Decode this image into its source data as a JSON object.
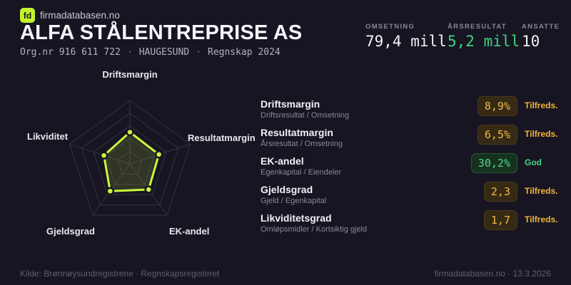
{
  "brand": {
    "logo_text": "fd",
    "site_name": "firmadatabasen.no",
    "accent_color": "#c3f22e"
  },
  "header": {
    "company_name": "ALFA STÅLENTREPRISE AS",
    "org_number": "Org.nr 916 611 722",
    "separator": "·",
    "location": "HAUGESUND",
    "report_period": "Regnskap 2024"
  },
  "topstats": {
    "items": [
      {
        "label": "OMSETNING",
        "value": "79,4 mill",
        "color": "#f4f3f7"
      },
      {
        "label": "ÅRSRESULTAT",
        "value": "5,2 mill",
        "color": "#40d47e"
      },
      {
        "label": "ANSATTE",
        "value": "10",
        "color": "#f4f3f7"
      }
    ]
  },
  "chart_data": {
    "type": "radar",
    "axes": [
      "Driftsmargin",
      "Resultatmargin",
      "EK-andel",
      "Gjeldsgrad",
      "Likviditet"
    ],
    "values_normalized": [
      0.5,
      0.48,
      0.5,
      0.53,
      0.43
    ],
    "axis_display_values": [
      "8,9%",
      "6,5%",
      "30,2%",
      "2,3",
      "1,7"
    ],
    "max": 1,
    "grid_levels": 5,
    "outer_radius": 89,
    "stroke_color": "#c9f63e",
    "fill_color": "rgba(201,246,62,0.14)",
    "grid_color": "#35323f",
    "legend": "none",
    "title": ""
  },
  "metrics": {
    "rows": [
      {
        "title": "Driftsmargin",
        "formula": "Driftsresultat / Omsetning",
        "value": "8,9%",
        "rating": "Tilfreds.",
        "status": "warn"
      },
      {
        "title": "Resultatmargin",
        "formula": "Årsresultat / Omsetning",
        "value": "6,5%",
        "rating": "Tilfreds.",
        "status": "warn"
      },
      {
        "title": "EK-andel",
        "formula": "Egenkapital / Eiendeler",
        "value": "30,2%",
        "rating": "God",
        "status": "good"
      },
      {
        "title": "Gjeldsgrad",
        "formula": "Gjeld / Egenkapital",
        "value": "2,3",
        "rating": "Tilfreds.",
        "status": "warn"
      },
      {
        "title": "Likviditetsgrad",
        "formula": "Omløpsmidler / Kortsiktig gjeld",
        "value": "1,7",
        "rating": "Tilfreds.",
        "status": "warn"
      }
    ],
    "status_colors": {
      "warn": "#f0b43c",
      "good": "#3fd97f"
    }
  },
  "footer": {
    "source": "Kilde: Brønnøysundregistrene · Regnskapsregisteret",
    "site_date": "firmadatabasen.no · 13.3.2026"
  }
}
